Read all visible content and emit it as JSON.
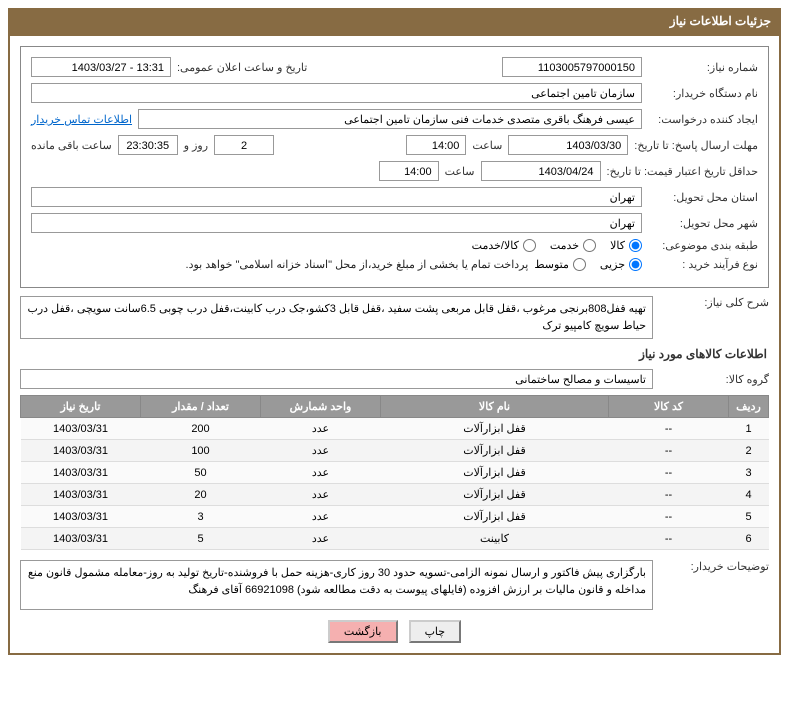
{
  "header": {
    "title": "جزئیات اطلاعات نیاز"
  },
  "fields": {
    "need_no_label": "شماره نیاز:",
    "need_no": "1103005797000150",
    "announce_label": "تاریخ و ساعت اعلان عمومی:",
    "announce": "13:31 - 1403/03/27",
    "buyer_org_label": "نام دستگاه خریدار:",
    "buyer_org": "سازمان تامین اجتماعی",
    "requester_label": "ایجاد کننده درخواست:",
    "requester": "عیسی فرهنگ باقری متصدی خدمات فنی سازمان تامین اجتماعی",
    "contact_link": "اطلاعات تماس خریدار",
    "deadline_label": "مهلت ارسال پاسخ: تا تاریخ:",
    "deadline_date": "1403/03/30",
    "deadline_time_label": "ساعت",
    "deadline_time": "14:00",
    "days": "2",
    "days_label": "روز و",
    "countdown": "23:30:35",
    "remain_label": "ساعت باقی مانده",
    "validity_label": "حداقل تاریخ اعتبار قیمت: تا تاریخ:",
    "validity_date": "1403/04/24",
    "validity_time_label": "ساعت",
    "validity_time": "14:00",
    "province_label": "استان محل تحویل:",
    "province": "تهران",
    "city_label": "شهر محل تحویل:",
    "city": "تهران",
    "classify_label": "طبقه بندی موضوعی:",
    "classify_opts": {
      "goods": "کالا",
      "service": "خدمت",
      "both": "کالا/خدمت"
    },
    "buytype_label": "نوع فرآیند خرید :",
    "buytype_opts": {
      "minor": "جزیی",
      "medium": "متوسط"
    },
    "treasury_note": "پرداخت تمام یا بخشی از مبلغ خرید،از محل \"اسناد خزانه اسلامی\" خواهد بود.",
    "need_desc_label": "شرح کلی نیاز:",
    "need_desc": "تهیه  قفل808برنجی مرغوب ،قفل قابل مربعی پشت سفید ،قفل قابل 3کشو،جک درب کابینت،قفل درب چوبی 6.5سانت سویچی ،قفل درب حیاط سویچ کامپیو ترک",
    "items_title": "اطلاعات کالاهای مورد نیاز",
    "group_label": "گروه کالا:",
    "group": "تاسیسات و مصالح ساختمانی",
    "buyer_notes_label": "توضیحات خریدار:",
    "buyer_notes": "بارگزاری پیش فاکتور و ارسال نمونه الزامی-تسویه حدود 30 روز کاری-هزینه حمل با فروشنده-تاریخ تولید به روز-معامله مشمول قانون منع مداخله و قانون مالیات بر ارزش افزوده (فایلهای پیوست به دقت مطالعه شود) 66921098 آقای فرهنگ"
  },
  "table": {
    "headers": {
      "idx": "ردیف",
      "code": "کد کالا",
      "name": "نام کالا",
      "unit": "واحد شمارش",
      "qty": "تعداد / مقدار",
      "date": "تاریخ نیاز"
    },
    "rows": [
      {
        "idx": "1",
        "code": "--",
        "name": "قفل ابزارآلات",
        "unit": "عدد",
        "qty": "200",
        "date": "1403/03/31"
      },
      {
        "idx": "2",
        "code": "--",
        "name": "قفل ابزارآلات",
        "unit": "عدد",
        "qty": "100",
        "date": "1403/03/31"
      },
      {
        "idx": "3",
        "code": "--",
        "name": "قفل ابزارآلات",
        "unit": "عدد",
        "qty": "50",
        "date": "1403/03/31"
      },
      {
        "idx": "4",
        "code": "--",
        "name": "قفل ابزارآلات",
        "unit": "عدد",
        "qty": "20",
        "date": "1403/03/31"
      },
      {
        "idx": "5",
        "code": "--",
        "name": "قفل ابزارآلات",
        "unit": "عدد",
        "qty": "3",
        "date": "1403/03/31"
      },
      {
        "idx": "6",
        "code": "--",
        "name": "کابینت",
        "unit": "عدد",
        "qty": "5",
        "date": "1403/03/31"
      }
    ]
  },
  "buttons": {
    "print": "چاپ",
    "back": "بازگشت"
  }
}
